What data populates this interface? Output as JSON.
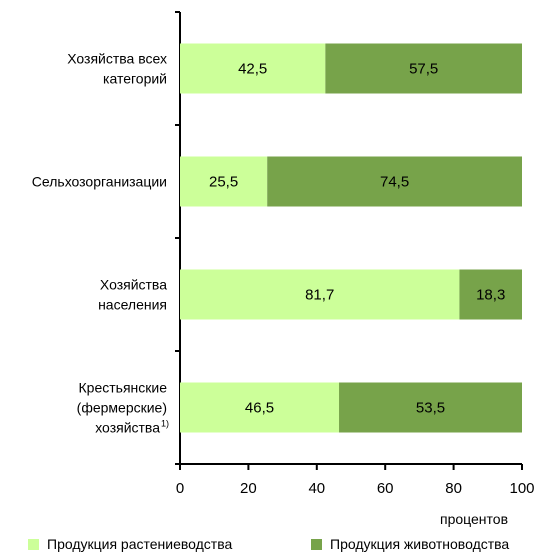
{
  "chart_data": {
    "type": "bar",
    "orientation": "horizontal",
    "stacked": true,
    "categories": [
      [
        "Хозяйства всех",
        "категорий"
      ],
      [
        "Сельхозорганизации"
      ],
      [
        "Хозяйства",
        "населения"
      ],
      [
        "Крестьянские",
        "(фермерские)",
        "хозяйства"
      ]
    ],
    "category_footnotes": [
      "",
      "",
      "",
      "1)"
    ],
    "series": [
      {
        "name": "Продукция растениеводства",
        "color": "#ccff99",
        "values": [
          42.5,
          25.5,
          81.7,
          46.5
        ],
        "labels": [
          "42,5",
          "25,5",
          "81,7",
          "46,5"
        ]
      },
      {
        "name": "Продукция животноводства",
        "color": "#77a34a",
        "values": [
          57.5,
          74.5,
          18.3,
          53.5
        ],
        "labels": [
          "57,5",
          "74,5",
          "18,3",
          "53,5"
        ]
      }
    ],
    "xlim": [
      0,
      100
    ],
    "xticks": [
      0,
      20,
      40,
      60,
      80,
      100
    ],
    "xlabel": "процентов",
    "grid": false,
    "legend_position": "bottom"
  }
}
